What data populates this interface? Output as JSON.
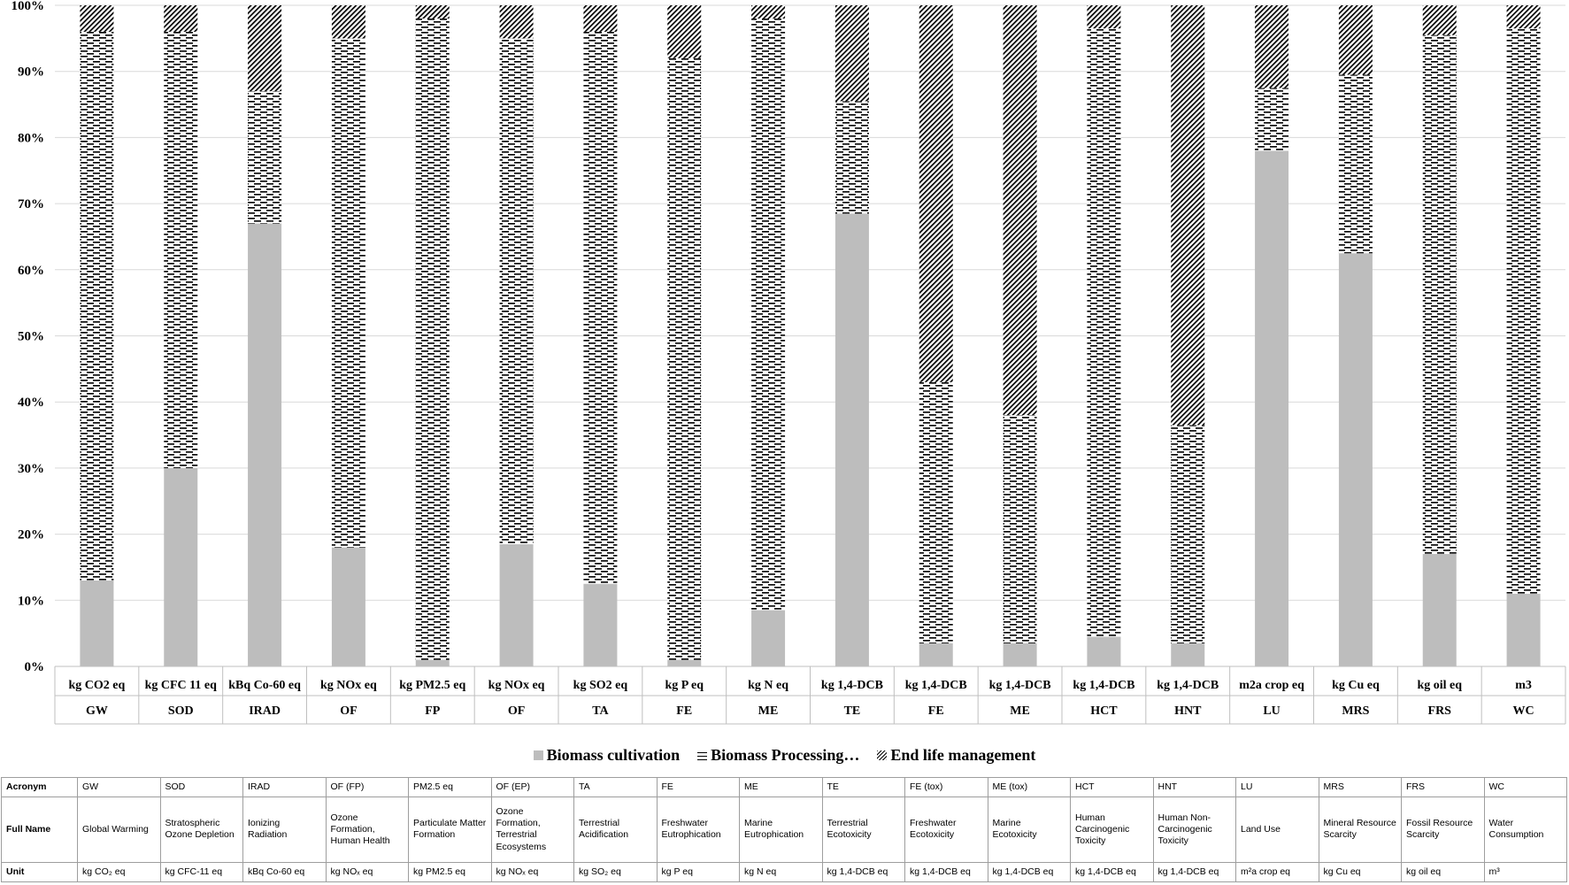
{
  "chart_data": {
    "type": "bar",
    "stacked": true,
    "percent_stacked": true,
    "y_ticks": [
      "0%",
      "10%",
      "20%",
      "30%",
      "40%",
      "50%",
      "60%",
      "70%",
      "80%",
      "90%",
      "100%"
    ],
    "ylim": [
      0,
      100
    ],
    "grid": true,
    "legend_position": "bottom",
    "categories": [
      "GW",
      "SOD",
      "IRAD",
      "OF",
      "FP",
      "OF",
      "TA",
      "FE",
      "ME",
      "TE",
      "FE",
      "ME",
      "HCT",
      "HNT",
      "LU",
      "MRS",
      "FRS",
      "WC"
    ],
    "category_units": [
      "kg CO2 eq",
      "kg CFC 11 eq",
      "kBq Co-60 eq",
      "kg NOx eq",
      "kg PM2.5 eq",
      "kg NOx eq",
      "kg SO2 eq",
      "kg P eq",
      "kg N eq",
      "kg 1,4-DCB",
      "kg 1,4-DCB",
      "kg 1,4-DCB",
      "kg 1,4-DCB",
      "kg 1,4-DCB",
      "m2a crop eq",
      "kg Cu eq",
      "kg oil eq",
      "m3"
    ],
    "series": [
      {
        "name": "Biomass cultivation",
        "pattern": "solid-gray",
        "color": "#bdbdbd",
        "values": [
          13,
          30,
          67,
          18,
          1,
          18.5,
          12.5,
          1,
          8.5,
          68.5,
          3.5,
          3.5,
          4.5,
          3.5,
          78,
          62.5,
          17,
          11
        ]
      },
      {
        "name": "Biomass Processing…",
        "pattern": "horizontal-dashes",
        "color": "#000000",
        "values": [
          83,
          66,
          20,
          77,
          97,
          76.5,
          83.5,
          91,
          89.5,
          17,
          39.5,
          34.5,
          92,
          33,
          9.5,
          27,
          78.5,
          85.5
        ]
      },
      {
        "name": "End life management",
        "pattern": "diagonal-hatch",
        "color": "#000000",
        "values": [
          4,
          4,
          13,
          5,
          2,
          5,
          4,
          8,
          2,
          14.5,
          57,
          62,
          3.5,
          63.5,
          12.5,
          10.5,
          4.5,
          3.5
        ]
      }
    ]
  },
  "table": {
    "row_headers": [
      "Acronym",
      "Full Name",
      "Unit"
    ],
    "acronyms": [
      "GW",
      "SOD",
      "IRAD",
      "OF (FP)",
      "PM2.5 eq",
      "OF (EP)",
      "TA",
      "FE",
      "ME",
      "TE",
      "FE (tox)",
      "ME (tox)",
      "HCT",
      "HNT",
      "LU",
      "MRS",
      "FRS",
      "WC"
    ],
    "full_names": [
      "Global Warming",
      "Stratospheric Ozone Depletion",
      "Ionizing Radiation",
      "Ozone Formation, Human Health",
      "Particulate Matter Formation",
      "Ozone Formation, Terrestrial Ecosystems",
      "Terrestrial Acidification",
      "Freshwater Eutrophication",
      "Marine Eutrophication",
      "Terrestrial Ecotoxicity",
      "Freshwater Ecotoxicity",
      "Marine Ecotoxicity",
      "Human Carcinogenic Toxicity",
      "Human Non-Carcinogenic Toxicity",
      "Land Use",
      "Mineral Resource Scarcity",
      "Fossil Resource Scarcity",
      "Water Consumption"
    ],
    "units": [
      "kg CO₂ eq",
      "kg CFC-11 eq",
      "kBq Co-60 eq",
      "kg NOₓ eq",
      "kg PM2.5 eq",
      "kg NOₓ eq",
      "kg SO₂ eq",
      "kg P eq",
      "kg N eq",
      "kg 1,4-DCB eq",
      "kg 1,4-DCB eq",
      "kg 1,4-DCB eq",
      "kg 1,4-DCB eq",
      "kg 1,4-DCB eq",
      "m²a crop eq",
      "kg Cu eq",
      "kg oil eq",
      "m³"
    ]
  }
}
